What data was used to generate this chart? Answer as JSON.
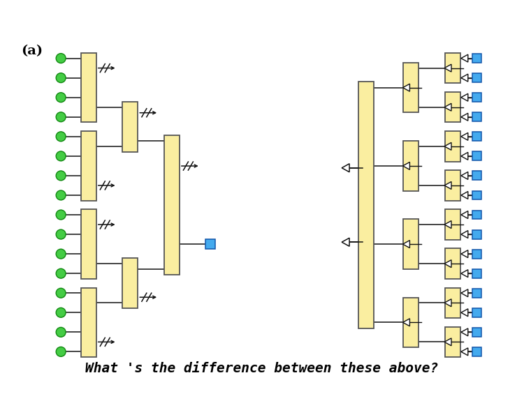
{
  "fig_width": 7.5,
  "fig_height": 5.88,
  "bg_color": "#ffffff",
  "box_fc": "#faeea0",
  "box_ec": "#555555",
  "green_fc": "#44cc44",
  "green_ec": "#118811",
  "blue_fc": "#44aaee",
  "blue_ec": "#1155aa",
  "line_color": "#111111",
  "bottom_text": "What 's the difference between these above?",
  "label_a": "(a)"
}
